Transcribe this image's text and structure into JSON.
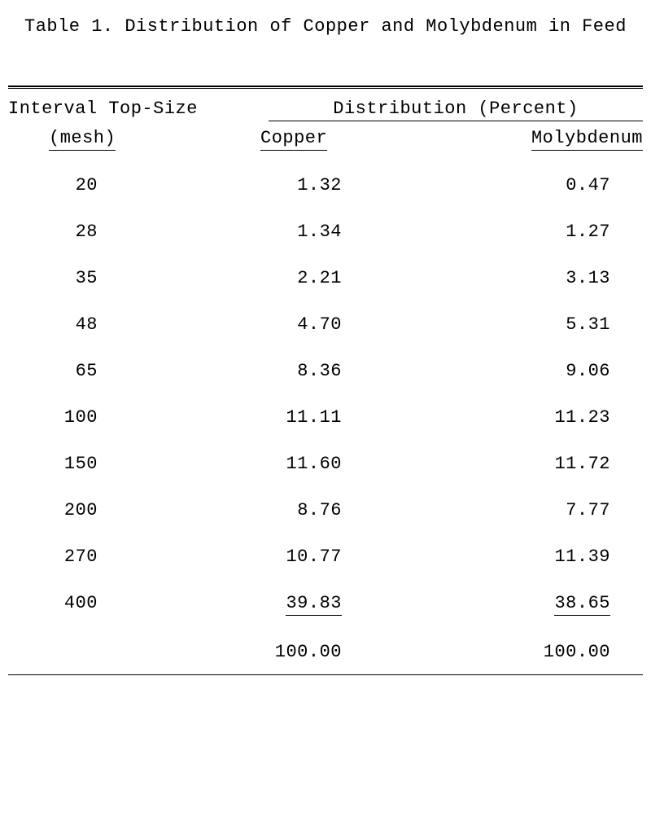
{
  "title": "Table 1.  Distribution of Copper and Molybdenum in Feed",
  "table": {
    "type": "table",
    "header": {
      "left_top": "Interval Top-Size",
      "left_bottom": "(mesh)",
      "right_group": "Distribution (Percent)",
      "copper": "Copper",
      "moly": "Molybdenum"
    },
    "columns": [
      "mesh",
      "copper",
      "molybdenum"
    ],
    "rows": [
      {
        "mesh": "20",
        "copper": "1.32",
        "moly": "0.47"
      },
      {
        "mesh": "28",
        "copper": "1.34",
        "moly": "1.27"
      },
      {
        "mesh": "35",
        "copper": "2.21",
        "moly": "3.13"
      },
      {
        "mesh": "48",
        "copper": "4.70",
        "moly": "5.31"
      },
      {
        "mesh": "65",
        "copper": "8.36",
        "moly": "9.06"
      },
      {
        "mesh": "100",
        "copper": "11.11",
        "moly": "11.23"
      },
      {
        "mesh": "150",
        "copper": "11.60",
        "moly": "11.72"
      },
      {
        "mesh": "200",
        "copper": "8.76",
        "moly": "7.77"
      },
      {
        "mesh": "270",
        "copper": "10.77",
        "moly": "11.39"
      },
      {
        "mesh": "400",
        "copper": "39.83",
        "moly": "38.65"
      }
    ],
    "totals": {
      "copper": "100.00",
      "moly": "100.00"
    },
    "colors": {
      "background": "#ffffff",
      "text": "#000000",
      "rule": "#000000"
    },
    "font": {
      "family": "Courier New",
      "size_pt": 16
    }
  }
}
